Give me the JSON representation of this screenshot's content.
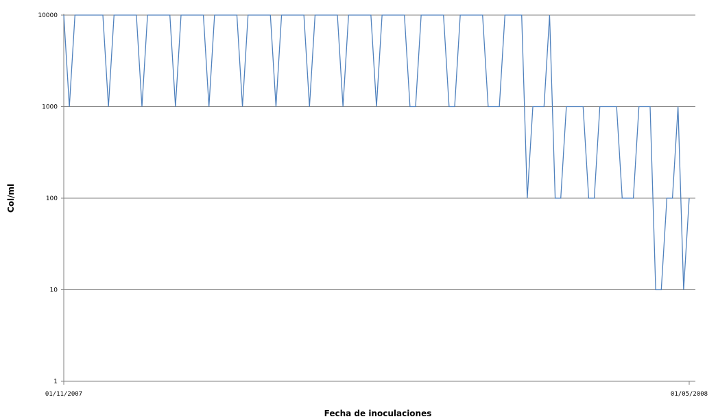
{
  "chart_data": {
    "type": "line",
    "title": "",
    "xlabel": "Fecha de inoculaciones",
    "ylabel": "Col/ml",
    "yscale": "log",
    "ylim": [
      1,
      10000
    ],
    "y_ticks": [
      "1",
      "10",
      "100",
      "1000",
      "10000"
    ],
    "y_tick_values": [
      1,
      10,
      100,
      1000,
      10000
    ],
    "x_tick_labels": [
      "01/11/2007",
      "01/05/2008"
    ],
    "grid": "horizontal",
    "legend": "none",
    "line_color": "#4f81bd",
    "series": [
      {
        "values": [
          10000,
          1000,
          10000,
          10000,
          10000,
          10000,
          10000,
          10000,
          1000,
          10000,
          10000,
          10000,
          10000,
          10000,
          1000,
          10000,
          10000,
          10000,
          10000,
          10000,
          1000,
          10000,
          10000,
          10000,
          10000,
          10000,
          1000,
          10000,
          10000,
          10000,
          10000,
          10000,
          1000,
          10000,
          10000,
          10000,
          10000,
          10000,
          1000,
          10000,
          10000,
          10000,
          10000,
          10000,
          1000,
          10000,
          10000,
          10000,
          10000,
          10000,
          1000,
          10000,
          10000,
          10000,
          10000,
          10000,
          1000,
          10000,
          10000,
          10000,
          10000,
          10000,
          1000,
          1000,
          10000,
          10000,
          10000,
          10000,
          10000,
          1000,
          1000,
          10000,
          10000,
          10000,
          10000,
          10000,
          1000,
          1000,
          1000,
          10000,
          10000,
          10000,
          10000,
          100,
          1000,
          1000,
          1000,
          10000,
          100,
          100,
          1000,
          1000,
          1000,
          1000,
          100,
          100,
          1000,
          1000,
          1000,
          1000,
          100,
          100,
          100,
          1000,
          1000,
          1000,
          10,
          10,
          100,
          100,
          1000,
          10,
          100
        ]
      }
    ]
  }
}
